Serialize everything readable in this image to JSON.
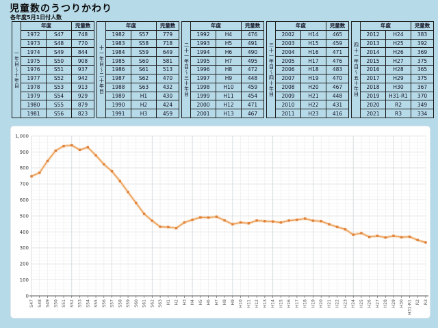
{
  "page": {
    "title": "児童数のうつりかわり",
    "subtitle": "各年度5月1日付人数"
  },
  "tables": {
    "headers": {
      "year": "年度",
      "count": "児童数"
    },
    "groups": [
      {
        "period_label": "一年目～十年目",
        "rows": [
          [
            "1972",
            "S47",
            "748"
          ],
          [
            "1973",
            "S48",
            "770"
          ],
          [
            "1974",
            "S49",
            "844"
          ],
          [
            "1975",
            "S50",
            "908"
          ],
          [
            "1976",
            "S51",
            "937"
          ],
          [
            "1977",
            "S52",
            "942"
          ],
          [
            "1978",
            "S53",
            "913"
          ],
          [
            "1979",
            "S54",
            "929"
          ],
          [
            "1980",
            "S55",
            "879"
          ],
          [
            "1981",
            "S56",
            "823"
          ]
        ]
      },
      {
        "period_label": "十一年目～二十年目",
        "rows": [
          [
            "1982",
            "S57",
            "779"
          ],
          [
            "1983",
            "S58",
            "718"
          ],
          [
            "1984",
            "S59",
            "649"
          ],
          [
            "1985",
            "S60",
            "581"
          ],
          [
            "1986",
            "S61",
            "513"
          ],
          [
            "1987",
            "S62",
            "470"
          ],
          [
            "1988",
            "S63",
            "432"
          ],
          [
            "1989",
            "H1",
            "430"
          ],
          [
            "1990",
            "H2",
            "424"
          ],
          [
            "1991",
            "H3",
            "459"
          ]
        ]
      },
      {
        "period_label": "二十一年目～三十年目",
        "rows": [
          [
            "1992",
            "H4",
            "476"
          ],
          [
            "1993",
            "H5",
            "491"
          ],
          [
            "1994",
            "H6",
            "490"
          ],
          [
            "1995",
            "H7",
            "495"
          ],
          [
            "1996",
            "H8",
            "472"
          ],
          [
            "1997",
            "H9",
            "448"
          ],
          [
            "1998",
            "H10",
            "459"
          ],
          [
            "1999",
            "H11",
            "454"
          ],
          [
            "2000",
            "H12",
            "471"
          ],
          [
            "2001",
            "H13",
            "467"
          ]
        ]
      },
      {
        "period_label": "三十一年目～四十年目",
        "rows": [
          [
            "2002",
            "H14",
            "465"
          ],
          [
            "2003",
            "H15",
            "459"
          ],
          [
            "2004",
            "H16",
            "471"
          ],
          [
            "2005",
            "H17",
            "476"
          ],
          [
            "2006",
            "H18",
            "483"
          ],
          [
            "2007",
            "H19",
            "470"
          ],
          [
            "2008",
            "H20",
            "467"
          ],
          [
            "2009",
            "H21",
            "448"
          ],
          [
            "2010",
            "H22",
            "431"
          ],
          [
            "2011",
            "H23",
            "416"
          ]
        ]
      },
      {
        "period_label": "四十一年目～五十年目",
        "rows": [
          [
            "2012",
            "H24",
            "383"
          ],
          [
            "2013",
            "H25",
            "392"
          ],
          [
            "2014",
            "H26",
            "369"
          ],
          [
            "2015",
            "H27",
            "375"
          ],
          [
            "2016",
            "H28",
            "365"
          ],
          [
            "2017",
            "H29",
            "375"
          ],
          [
            "2018",
            "H30",
            "367"
          ],
          [
            "2019",
            "H31-R1",
            "370"
          ],
          [
            "2020",
            "R2",
            "349"
          ],
          [
            "2021",
            "R3",
            "334"
          ]
        ]
      }
    ]
  },
  "chart_data": {
    "type": "line",
    "title": "",
    "xlabel": "",
    "ylabel": "",
    "x": [
      "S47",
      "S48",
      "S49",
      "S50",
      "S51",
      "S52",
      "S53",
      "S54",
      "S55",
      "S56",
      "S57",
      "S58",
      "S59",
      "S60",
      "S61",
      "S62",
      "S63",
      "H1",
      "H2",
      "H3",
      "H4",
      "H5",
      "H6",
      "H7",
      "H8",
      "H9",
      "H10",
      "H11",
      "H12",
      "H13",
      "H14",
      "H15",
      "H16",
      "H17",
      "H18",
      "H19",
      "H20",
      "H21",
      "H22",
      "H23",
      "H24",
      "H25",
      "H26",
      "H27",
      "H28",
      "H29",
      "H30",
      "H31-R1",
      "R2",
      "R3"
    ],
    "series": [
      {
        "name": "児童数",
        "values": [
          748,
          770,
          844,
          908,
          937,
          942,
          913,
          929,
          879,
          823,
          779,
          718,
          649,
          581,
          513,
          470,
          432,
          430,
          424,
          459,
          476,
          491,
          490,
          495,
          472,
          448,
          459,
          454,
          471,
          467,
          465,
          459,
          471,
          476,
          483,
          470,
          467,
          448,
          431,
          416,
          383,
          392,
          369,
          375,
          365,
          375,
          367,
          370,
          349,
          334
        ]
      }
    ],
    "ylim": [
      0,
      1000
    ],
    "y_tick_interval": 100,
    "y_minor_interval": 20,
    "grid": true,
    "legend_position": "none",
    "line_color": "#ec9b4f",
    "line_halo_color": "#f7ddc2",
    "marker_color": "#e0813a"
  },
  "colors": {
    "page_background": "#b7dae8",
    "panel_background": "#ffffff",
    "table_border": "#1c1c1c",
    "grid_major": "#dcdcdc",
    "grid_minor": "#f4f4f4",
    "axis": "#555555"
  }
}
